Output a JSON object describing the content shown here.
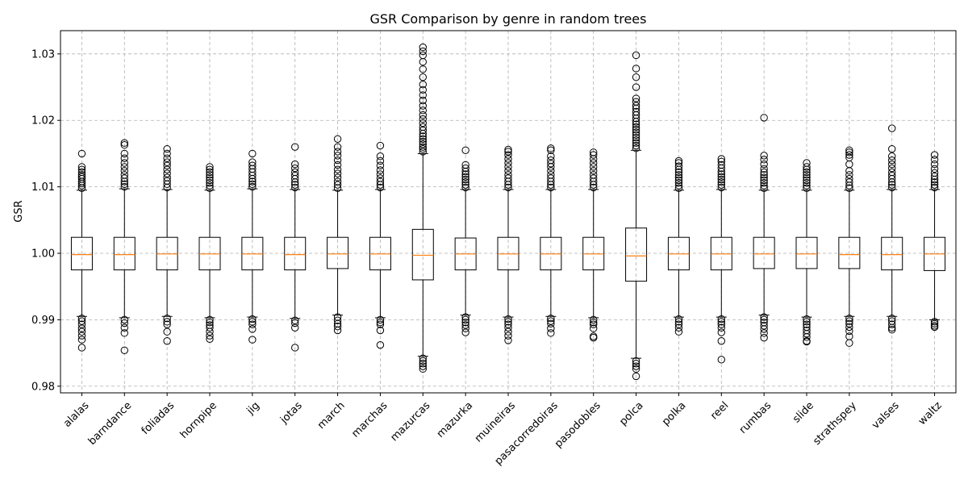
{
  "chart_data": {
    "type": "boxplot",
    "title": "GSR Comparison by genre in random trees",
    "xlabel": "",
    "ylabel": "GSR",
    "ylim": [
      0.979,
      1.0335
    ],
    "yticks": [
      0.98,
      0.99,
      1.0,
      1.01,
      1.02,
      1.03
    ],
    "ytick_labels": [
      "0.98",
      "0.99",
      "1.00",
      "1.01",
      "1.02",
      "1.03"
    ],
    "grid": true,
    "categories": [
      "alalas",
      "barndance",
      "foliadas",
      "hornpipe",
      "jig",
      "jotas",
      "march",
      "marchas",
      "mazurcas",
      "mazurka",
      "muineiras",
      "pasacorredoiras",
      "pasodobles",
      "polca",
      "polka",
      "reel",
      "rumbas",
      "slide",
      "strathspey",
      "valses",
      "waltz"
    ],
    "boxes": [
      {
        "q1": 0.9975,
        "median": 0.9998,
        "q3": 1.0024,
        "whislo": 0.9905,
        "whishi": 1.0095,
        "fliers_high": [
          1.0098,
          1.0102,
          1.0105,
          1.0108,
          1.0112,
          1.0115,
          1.0118,
          1.0122,
          1.0126,
          1.013,
          1.015
        ],
        "fliers_low": [
          0.9902,
          0.9898,
          0.9893,
          0.9887,
          0.9882,
          0.9876,
          0.987,
          0.9858
        ]
      },
      {
        "q1": 0.9975,
        "median": 0.9998,
        "q3": 1.0024,
        "whislo": 0.9903,
        "whishi": 1.0097,
        "fliers_high": [
          1.01,
          1.0104,
          1.0108,
          1.0113,
          1.0118,
          1.0124,
          1.013,
          1.0136,
          1.0143,
          1.015,
          1.0163,
          1.0166
        ],
        "fliers_low": [
          0.99,
          0.9895,
          0.9888,
          0.988,
          0.9854
        ]
      },
      {
        "q1": 0.9975,
        "median": 0.9999,
        "q3": 1.0024,
        "whislo": 0.9905,
        "whishi": 1.0096,
        "fliers_high": [
          1.0099,
          1.0104,
          1.0109,
          1.0114,
          1.012,
          1.0126,
          1.0132,
          1.0137,
          1.0143,
          1.015,
          1.0157
        ],
        "fliers_low": [
          0.9902,
          0.9897,
          0.9893,
          0.9882,
          0.9868
        ]
      },
      {
        "q1": 0.9975,
        "median": 0.9999,
        "q3": 1.0024,
        "whislo": 0.9903,
        "whishi": 1.0095,
        "fliers_high": [
          1.0098,
          1.0102,
          1.0106,
          1.011,
          1.0114,
          1.0118,
          1.0122,
          1.0126,
          1.013
        ],
        "fliers_low": [
          0.99,
          0.9896,
          0.9892,
          0.9888,
          0.9882,
          0.9876,
          0.9871
        ]
      },
      {
        "q1": 0.9975,
        "median": 0.9999,
        "q3": 1.0024,
        "whislo": 0.9904,
        "whishi": 1.0097,
        "fliers_high": [
          1.01,
          1.0104,
          1.0108,
          1.0112,
          1.0117,
          1.0122,
          1.0127,
          1.0132,
          1.0137,
          1.015
        ],
        "fliers_low": [
          0.9901,
          0.9897,
          0.9893,
          0.9886,
          0.987
        ]
      },
      {
        "q1": 0.9975,
        "median": 0.9998,
        "q3": 1.0024,
        "whislo": 0.9902,
        "whishi": 1.0096,
        "fliers_high": [
          1.0099,
          1.0103,
          1.0107,
          1.0112,
          1.0117,
          1.0122,
          1.0128,
          1.0134,
          1.016
        ],
        "fliers_low": [
          0.9899,
          0.9895,
          0.9888,
          0.9858
        ]
      },
      {
        "q1": 0.9977,
        "median": 0.9999,
        "q3": 1.0024,
        "whislo": 0.9907,
        "whishi": 1.0095,
        "fliers_high": [
          1.0098,
          1.0103,
          1.0108,
          1.0114,
          1.012,
          1.0126,
          1.0133,
          1.014,
          1.0147,
          1.0153,
          1.016,
          1.0172
        ],
        "fliers_low": [
          0.9904,
          0.9899,
          0.9894,
          0.989,
          0.9884
        ]
      },
      {
        "q1": 0.9975,
        "median": 0.9999,
        "q3": 1.0024,
        "whislo": 0.9903,
        "whishi": 1.0096,
        "fliers_high": [
          1.0099,
          1.0103,
          1.0108,
          1.0113,
          1.0119,
          1.0125,
          1.0132,
          1.0139,
          1.0146,
          1.0162
        ],
        "fliers_low": [
          0.99,
          0.9896,
          0.9893,
          0.9884,
          0.9862
        ]
      },
      {
        "q1": 0.996,
        "median": 0.9997,
        "q3": 1.0036,
        "whislo": 0.9845,
        "whishi": 1.015,
        "fliers_high": [
          1.0153,
          1.0157,
          1.016,
          1.0164,
          1.0168,
          1.0172,
          1.0176,
          1.018,
          1.0185,
          1.019,
          1.0196,
          1.0202,
          1.0208,
          1.0215,
          1.0222,
          1.023,
          1.0238,
          1.0246,
          1.0254,
          1.0265,
          1.0277,
          1.0288,
          1.0298,
          1.0304,
          1.031
        ],
        "fliers_low": [
          0.9842,
          0.9838,
          0.9834,
          0.983,
          0.9826
        ]
      },
      {
        "q1": 0.9975,
        "median": 0.9999,
        "q3": 1.0023,
        "whislo": 0.9907,
        "whishi": 1.0096,
        "fliers_high": [
          1.0099,
          1.0103,
          1.0107,
          1.0111,
          1.0115,
          1.0119,
          1.0123,
          1.0128,
          1.0133,
          1.0155
        ],
        "fliers_low": [
          0.9904,
          0.99,
          0.9896,
          0.9892,
          0.9887,
          0.9881
        ]
      },
      {
        "q1": 0.9975,
        "median": 0.9999,
        "q3": 1.0024,
        "whislo": 0.9904,
        "whishi": 1.0096,
        "fliers_high": [
          1.0099,
          1.0103,
          1.0108,
          1.0113,
          1.0118,
          1.0124,
          1.013,
          1.0136,
          1.0142,
          1.0148,
          1.0153,
          1.0156
        ],
        "fliers_low": [
          0.9901,
          0.9897,
          0.9893,
          0.9888,
          0.9882,
          0.9876,
          0.9869
        ]
      },
      {
        "q1": 0.9975,
        "median": 0.9999,
        "q3": 1.0024,
        "whislo": 0.9905,
        "whishi": 1.0096,
        "fliers_high": [
          1.0099,
          1.0103,
          1.0108,
          1.0113,
          1.0118,
          1.0124,
          1.013,
          1.0135,
          1.014,
          1.0146,
          1.0155,
          1.0158
        ],
        "fliers_low": [
          0.9902,
          0.9898,
          0.9894,
          0.9887,
          0.988
        ]
      },
      {
        "q1": 0.9975,
        "median": 0.9999,
        "q3": 1.0024,
        "whislo": 0.9903,
        "whishi": 1.0096,
        "fliers_high": [
          1.0099,
          1.0103,
          1.0108,
          1.0113,
          1.0118,
          1.0124,
          1.013,
          1.0136,
          1.0142,
          1.0148,
          1.0152
        ],
        "fliers_low": [
          0.99,
          0.9896,
          0.9893,
          0.9887,
          0.9875,
          0.9873
        ]
      },
      {
        "q1": 0.9958,
        "median": 0.9996,
        "q3": 1.0038,
        "whislo": 0.9842,
        "whishi": 1.0155,
        "fliers_high": [
          1.0158,
          1.0162,
          1.0166,
          1.017,
          1.0174,
          1.0178,
          1.0182,
          1.0186,
          1.019,
          1.0194,
          1.0198,
          1.0203,
          1.0208,
          1.0213,
          1.0218,
          1.0222,
          1.0228,
          1.0233,
          1.025,
          1.0265,
          1.0278,
          1.0298
        ],
        "fliers_low": [
          0.9838,
          0.9834,
          0.983,
          0.9826,
          0.9815
        ]
      },
      {
        "q1": 0.9975,
        "median": 0.9999,
        "q3": 1.0024,
        "whislo": 0.9904,
        "whishi": 1.0095,
        "fliers_high": [
          1.0098,
          1.0102,
          1.0106,
          1.011,
          1.0114,
          1.0118,
          1.0122,
          1.0126,
          1.0131,
          1.0136,
          1.0139
        ],
        "fliers_low": [
          0.9901,
          0.9897,
          0.9893,
          0.9888,
          0.9882
        ]
      },
      {
        "q1": 0.9975,
        "median": 0.9999,
        "q3": 1.0024,
        "whislo": 0.9904,
        "whishi": 1.0096,
        "fliers_high": [
          1.0099,
          1.0103,
          1.0107,
          1.0111,
          1.0115,
          1.0119,
          1.0123,
          1.0128,
          1.0133,
          1.0138,
          1.0142
        ],
        "fliers_low": [
          0.9901,
          0.9897,
          0.9893,
          0.9888,
          0.9881,
          0.9868,
          0.984
        ]
      },
      {
        "q1": 0.9977,
        "median": 0.9999,
        "q3": 1.0024,
        "whislo": 0.9907,
        "whishi": 1.0095,
        "fliers_high": [
          1.0098,
          1.0102,
          1.0106,
          1.011,
          1.0114,
          1.0118,
          1.0122,
          1.0127,
          1.0134,
          1.0141,
          1.0147,
          1.0204
        ],
        "fliers_low": [
          0.9904,
          0.99,
          0.9896,
          0.9891,
          0.9886,
          0.988,
          0.9873
        ]
      },
      {
        "q1": 0.9977,
        "median": 0.9999,
        "q3": 1.0024,
        "whislo": 0.9904,
        "whishi": 1.0095,
        "fliers_high": [
          1.0098,
          1.0102,
          1.0106,
          1.011,
          1.0114,
          1.0118,
          1.0122,
          1.0126,
          1.013,
          1.0136
        ],
        "fliers_low": [
          0.9901,
          0.9897,
          0.9893,
          0.9889,
          0.9884,
          0.9879,
          0.9874,
          0.9868,
          0.9867
        ]
      },
      {
        "q1": 0.9977,
        "median": 0.9998,
        "q3": 1.0024,
        "whislo": 0.9905,
        "whishi": 1.0095,
        "fliers_high": [
          1.0098,
          1.0102,
          1.0107,
          1.0112,
          1.0118,
          1.0124,
          1.0134,
          1.0144,
          1.0148,
          1.0152,
          1.0155
        ],
        "fliers_low": [
          0.9902,
          0.9898,
          0.9894,
          0.9889,
          0.9883,
          0.9875,
          0.9865
        ]
      },
      {
        "q1": 0.9975,
        "median": 0.9998,
        "q3": 1.0024,
        "whislo": 0.9905,
        "whishi": 1.0096,
        "fliers_high": [
          1.0099,
          1.0103,
          1.0107,
          1.0112,
          1.0117,
          1.0122,
          1.0128,
          1.0134,
          1.014,
          1.0146,
          1.0157,
          1.0188
        ],
        "fliers_low": [
          0.9902,
          0.9898,
          0.9893,
          0.9888,
          0.9885
        ]
      },
      {
        "q1": 0.9974,
        "median": 0.9999,
        "q3": 1.0024,
        "whislo": 0.99,
        "whishi": 1.0096,
        "fliers_high": [
          1.0099,
          1.0103,
          1.0107,
          1.0111,
          1.0116,
          1.0121,
          1.0127,
          1.0134,
          1.0141,
          1.0148
        ],
        "fliers_low": [
          0.9897,
          0.9894,
          0.9891,
          0.9889
        ]
      }
    ]
  }
}
